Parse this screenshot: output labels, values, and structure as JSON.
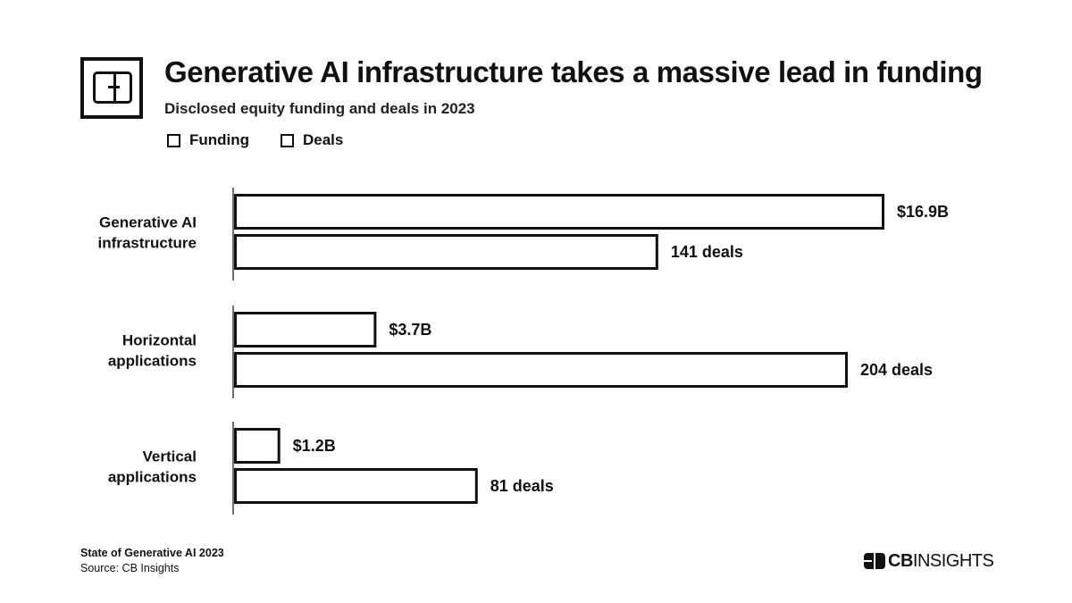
{
  "header": {
    "title": "Generative AI infrastructure takes a massive lead in funding",
    "subtitle": "Disclosed equity funding and deals in 2023",
    "legend": [
      {
        "label": "Funding"
      },
      {
        "label": "Deals"
      }
    ]
  },
  "chart_data": {
    "type": "bar",
    "orientation": "horizontal",
    "title": "Generative AI infrastructure takes a massive lead in funding",
    "subtitle": "Disclosed equity funding and deals in 2023",
    "categories": [
      {
        "line1": "Generative AI",
        "line2": "infrastructure"
      },
      {
        "line1": "Horizontal",
        "line2": "applications"
      },
      {
        "line1": "Vertical",
        "line2": "applications"
      }
    ],
    "series": [
      {
        "name": "Funding",
        "unit": "$B",
        "values": [
          16.9,
          3.7,
          1.2
        ],
        "labels": [
          "$16.9B",
          "$3.7B",
          "$1.2B"
        ],
        "axis_max": 16.9
      },
      {
        "name": "Deals",
        "unit": "deals",
        "values": [
          141,
          204,
          81
        ],
        "labels": [
          "141 deals",
          "204 deals",
          "81 deals"
        ],
        "axis_max": 204
      }
    ],
    "grid": false,
    "legend_position": "top-left"
  },
  "footer": {
    "report": "State of Generative AI 2023",
    "source": "Source: CB Insights",
    "brand_cb": "CB",
    "brand_insights": "INSIGHTS"
  }
}
